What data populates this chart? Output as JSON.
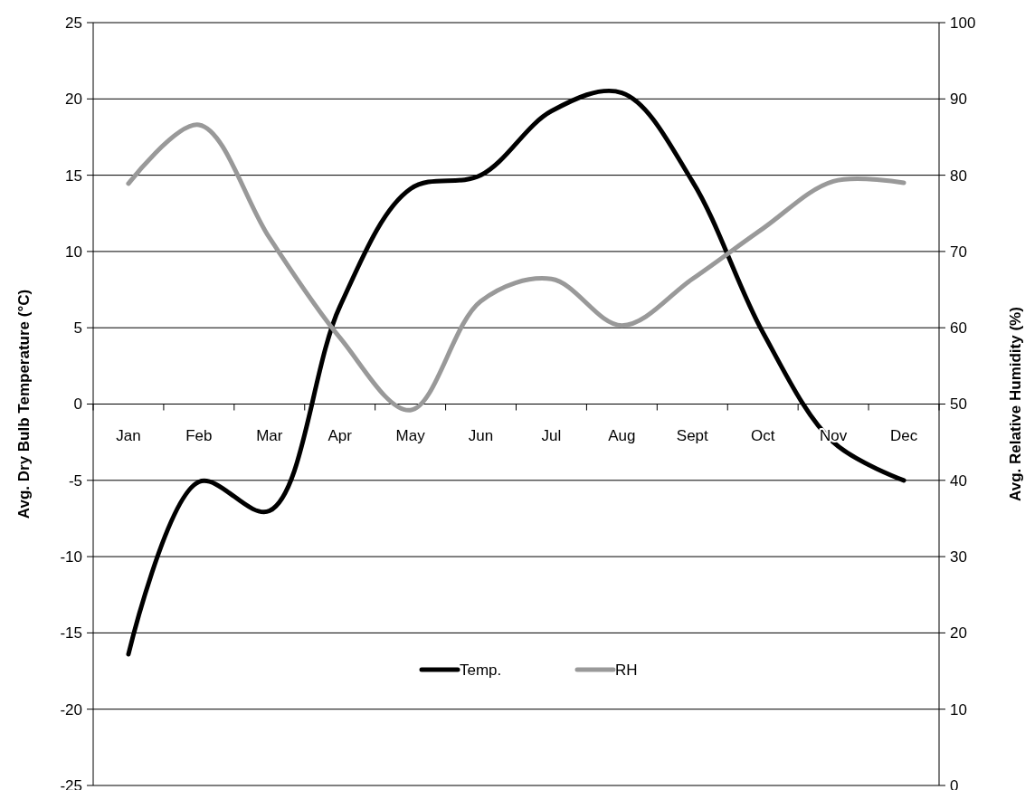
{
  "chart_data": {
    "type": "line",
    "categories": [
      "Jan",
      "Feb",
      "Mar",
      "Apr",
      "May",
      "Jun",
      "Jul",
      "Aug",
      "Sept",
      "Oct",
      "Nov",
      "Dec"
    ],
    "series": [
      {
        "name": "Temp.",
        "color": "#000000",
        "values": [
          -16.4,
          -5.1,
          -7.0,
          6.4,
          14.1,
          15.0,
          19.2,
          20.4,
          14.6,
          4.7,
          -2.5,
          -5.0
        ]
      },
      {
        "name": "RH",
        "color": "#999999",
        "axis": "y2",
        "values": [
          78.9,
          86.6,
          71.8,
          58.7,
          49.2,
          63.5,
          66.4,
          60.3,
          66.4,
          73.0,
          79.2,
          79.0
        ]
      }
    ],
    "ylabel": "Avg. Dry Bulb Temperature (°C)",
    "y2label": "Avg. Relative Humidity (%)",
    "ylim": [
      -25,
      25
    ],
    "yticks": [
      -25,
      -20,
      -15,
      -10,
      -5,
      0,
      5,
      10,
      15,
      20,
      25
    ],
    "y2lim": [
      0,
      100
    ],
    "y2ticks": [
      0,
      10,
      20,
      30,
      40,
      50,
      60,
      70,
      80,
      90,
      100
    ],
    "grid": "y",
    "legend": "bottom",
    "marker": "none",
    "line_style": "solid"
  }
}
